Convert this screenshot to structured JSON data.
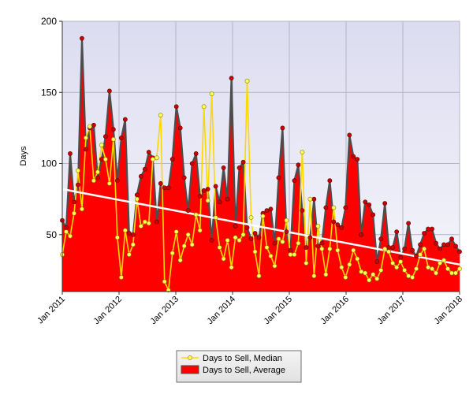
{
  "chart_data": {
    "type": "area",
    "title": "",
    "xlabel": "",
    "ylabel": "Days",
    "ylim": [
      10,
      200
    ],
    "yticks": [
      50,
      100,
      150,
      200
    ],
    "x_tick_labels": [
      "Jan 2011",
      "Jan 2012",
      "Jan 2013",
      "Jan 2014",
      "Jan 2015",
      "Jan 2016",
      "Jan 2017",
      "Jan 2018"
    ],
    "grid": true,
    "legend_position": "bottom-center",
    "start_month": "Jan 2011",
    "series": [
      {
        "name": "Days to Sell, Average",
        "style": "area",
        "fill": "#ff0000",
        "line": "#4d4d4d",
        "marker": "#cc0000",
        "values": [
          60,
          55,
          107,
          73,
          85,
          188,
          110,
          125,
          127,
          90,
          103,
          119,
          151,
          124,
          88,
          118,
          131,
          51,
          50,
          78,
          91,
          96,
          108,
          104,
          59,
          86,
          83,
          83,
          103,
          140,
          125,
          90,
          67,
          100,
          107,
          77,
          81,
          82,
          46,
          84,
          73,
          97,
          75,
          160,
          56,
          97,
          101,
          55,
          47,
          51,
          48,
          65,
          67,
          68,
          44,
          90,
          125,
          52,
          39,
          88,
          99,
          67,
          41,
          48,
          75,
          42,
          44,
          69,
          88,
          59,
          57,
          55,
          69,
          120,
          105,
          103,
          50,
          73,
          71,
          64,
          31,
          47,
          72,
          41,
          41,
          52,
          34,
          40,
          58,
          39,
          35,
          43,
          51,
          54,
          54,
          44,
          40,
          43,
          43,
          47,
          42,
          38
        ]
      },
      {
        "name": "Days to Sell, Median",
        "style": "line",
        "line": "#ffd700",
        "marker": "#ffff55",
        "values": [
          36,
          52,
          49,
          65,
          95,
          68,
          118,
          126,
          88,
          94,
          113,
          103,
          86,
          117,
          48,
          20,
          53,
          36,
          43,
          75,
          56,
          59,
          58,
          103,
          104,
          134,
          17,
          11,
          37,
          52,
          32,
          42,
          50,
          43,
          64,
          53,
          140,
          74,
          149,
          62,
          41,
          33,
          46,
          27,
          48,
          46,
          50,
          158,
          62,
          38,
          21,
          63,
          41,
          35,
          28,
          47,
          45,
          60,
          36,
          36,
          44,
          108,
          30,
          75,
          21,
          56,
          40,
          22,
          40,
          69,
          39,
          27,
          20,
          29,
          39,
          33,
          24,
          23,
          18,
          22,
          19,
          25,
          40,
          38,
          30,
          27,
          31,
          25,
          21,
          20,
          26,
          36,
          40,
          27,
          26,
          23,
          30,
          32,
          26,
          23,
          23,
          26
        ]
      }
    ],
    "trendline": {
      "color": "#ffffff",
      "start": 82,
      "end": 29
    }
  }
}
